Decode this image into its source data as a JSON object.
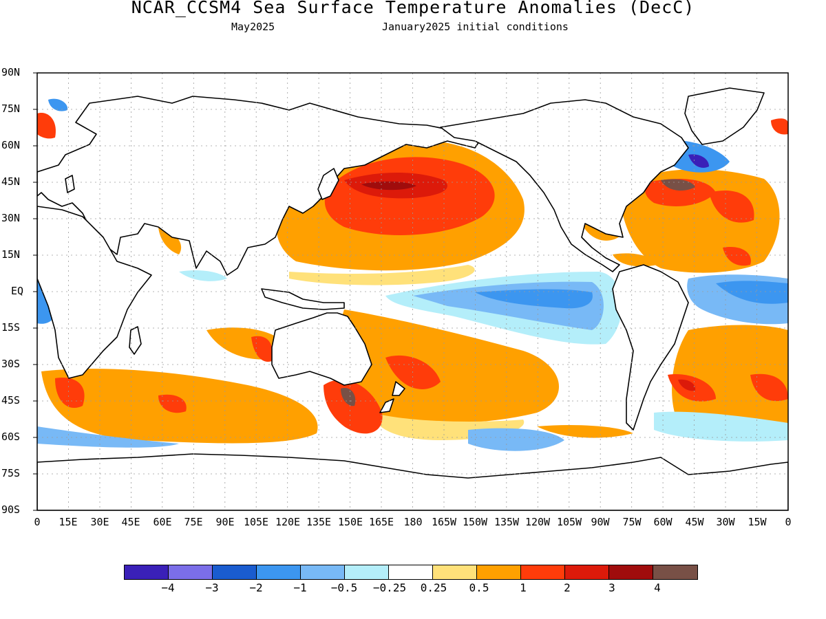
{
  "title": "NCAR_CCSM4 Sea Surface Temperature Anomalies (DecC)",
  "subtitle_left": "May2025",
  "subtitle_right": "January2025 initial conditions",
  "lat_labels": [
    "90N",
    "75N",
    "60N",
    "45N",
    "30N",
    "15N",
    "EQ",
    "15S",
    "30S",
    "45S",
    "60S",
    "75S",
    "90S"
  ],
  "lon_labels": [
    "0",
    "15E",
    "30E",
    "45E",
    "60E",
    "75E",
    "90E",
    "105E",
    "120E",
    "135E",
    "150E",
    "165E",
    "180",
    "165W",
    "150W",
    "135W",
    "120W",
    "105W",
    "90W",
    "75W",
    "60W",
    "45W",
    "30W",
    "15W",
    "0"
  ],
  "colorbar": {
    "colors": [
      "#3a20b8",
      "#7b6ee8",
      "#1a5ccf",
      "#3c96f0",
      "#78b9f6",
      "#b4eefa",
      "#ffffff",
      "#ffe17a",
      "#ffa000",
      "#ff3c0a",
      "#dc1a0a",
      "#a00c0c",
      "#785046"
    ],
    "labels": [
      "−4",
      "−3",
      "−2",
      "−1",
      "−0.5",
      "−0.25",
      "0.25",
      "0.5",
      "1",
      "2",
      "3",
      "4"
    ]
  },
  "map_colors": {
    "ocean": "#ffffff",
    "land": "#ffffff",
    "coast": "#000000",
    "grid": "#9a9a9a"
  }
}
